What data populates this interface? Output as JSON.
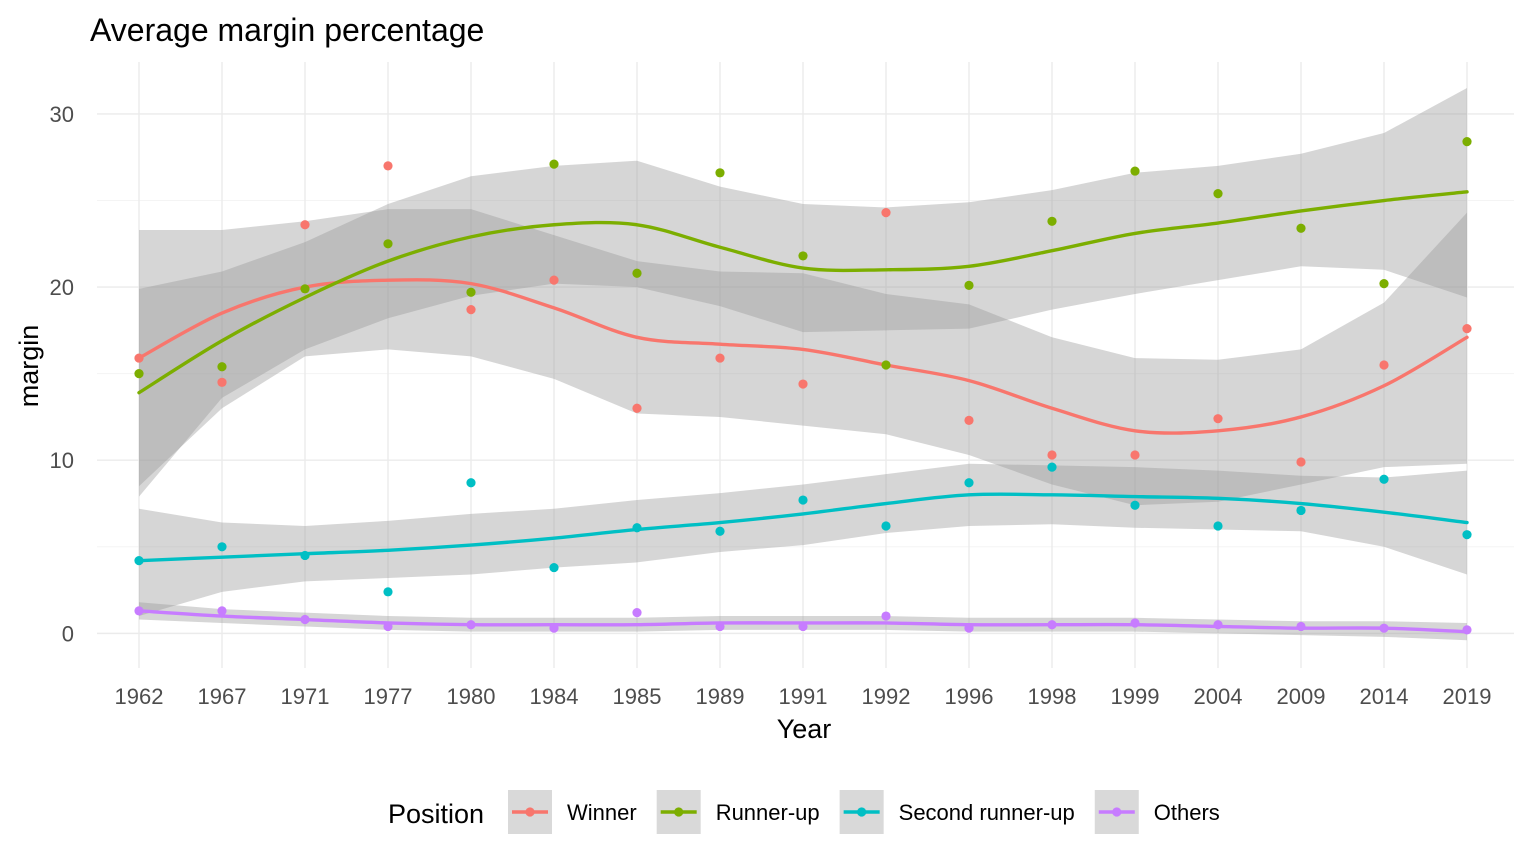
{
  "chart_data": {
    "type": "scatter",
    "title": "Average margin percentage",
    "xlabel": "Year",
    "ylabel": "margin",
    "categories": [
      "1962",
      "1967",
      "1971",
      "1977",
      "1980",
      "1984",
      "1985",
      "1989",
      "1991",
      "1992",
      "1996",
      "1998",
      "1999",
      "2004",
      "2009",
      "2014",
      "2019"
    ],
    "ylim": [
      -2,
      33
    ],
    "yticks": [
      0,
      10,
      20,
      30
    ],
    "grid": true,
    "legend_title": "Position",
    "legend_position": "bottom",
    "smoothing": "loess with confidence band",
    "series": [
      {
        "name": "Winner",
        "color": "#f8766d",
        "points": [
          15.9,
          14.5,
          23.6,
          27.0,
          18.7,
          20.4,
          13.0,
          15.9,
          14.4,
          24.3,
          12.3,
          10.3,
          10.3,
          12.4,
          9.9,
          15.5,
          17.6
        ],
        "trend": [
          15.9,
          18.5,
          20.0,
          20.4,
          20.2,
          18.8,
          17.1,
          16.7,
          16.4,
          15.5,
          14.6,
          13.0,
          11.7,
          11.7,
          12.5,
          14.3,
          17.1
        ],
        "band_low": [
          8.5,
          13.0,
          16.0,
          16.4,
          16.0,
          14.7,
          12.7,
          12.5,
          12.0,
          11.5,
          10.3,
          8.6,
          7.4,
          7.6,
          8.6,
          9.6,
          9.8
        ],
        "band_high": [
          23.3,
          23.3,
          23.8,
          24.5,
          24.5,
          23.0,
          21.5,
          20.9,
          20.8,
          19.6,
          19.0,
          17.1,
          15.9,
          15.8,
          16.4,
          19.1,
          24.3
        ]
      },
      {
        "name": "Runner-up",
        "color": "#7cae00",
        "points": [
          15.0,
          15.4,
          19.9,
          22.5,
          19.7,
          27.1,
          20.8,
          26.6,
          21.8,
          15.5,
          20.1,
          23.8,
          26.7,
          25.4,
          23.4,
          20.2,
          28.4
        ],
        "trend": [
          13.9,
          16.9,
          19.4,
          21.5,
          22.9,
          23.6,
          23.6,
          22.3,
          21.1,
          21.0,
          21.2,
          22.1,
          23.1,
          23.7,
          24.4,
          25.0,
          25.5
        ],
        "band_low": [
          7.9,
          13.6,
          16.4,
          18.2,
          19.5,
          20.2,
          20.0,
          18.9,
          17.4,
          17.5,
          17.6,
          18.7,
          19.6,
          20.4,
          21.2,
          21.0,
          19.4
        ],
        "band_high": [
          19.9,
          20.9,
          22.6,
          24.8,
          26.4,
          27.0,
          27.3,
          25.8,
          24.8,
          24.6,
          24.9,
          25.6,
          26.6,
          27.0,
          27.7,
          28.9,
          31.5
        ]
      },
      {
        "name": "Second runner-up",
        "color": "#00bfc4",
        "points": [
          4.2,
          5.0,
          4.5,
          2.4,
          8.7,
          3.8,
          6.1,
          5.9,
          7.7,
          6.2,
          8.7,
          9.6,
          7.4,
          6.2,
          7.1,
          8.9,
          5.7
        ],
        "trend": [
          4.2,
          4.4,
          4.6,
          4.8,
          5.1,
          5.5,
          6.0,
          6.4,
          6.9,
          7.5,
          8.0,
          8.0,
          7.9,
          7.8,
          7.5,
          7.0,
          6.4
        ],
        "band_low": [
          1.0,
          2.4,
          3.0,
          3.2,
          3.4,
          3.8,
          4.1,
          4.7,
          5.1,
          5.8,
          6.2,
          6.3,
          6.1,
          6.0,
          5.9,
          5.0,
          3.4
        ],
        "band_high": [
          7.2,
          6.4,
          6.2,
          6.5,
          6.9,
          7.2,
          7.7,
          8.1,
          8.6,
          9.2,
          9.8,
          9.7,
          9.6,
          9.4,
          9.1,
          9.0,
          9.4
        ]
      },
      {
        "name": "Others",
        "color": "#c77cff",
        "points": [
          1.3,
          1.3,
          0.8,
          0.4,
          0.5,
          0.3,
          1.2,
          0.4,
          0.4,
          1.0,
          0.3,
          0.5,
          0.6,
          0.5,
          0.4,
          0.3,
          0.2
        ],
        "trend": [
          1.3,
          1.0,
          0.8,
          0.6,
          0.5,
          0.5,
          0.5,
          0.6,
          0.6,
          0.6,
          0.5,
          0.5,
          0.5,
          0.4,
          0.3,
          0.3,
          0.1
        ],
        "band_low": [
          0.8,
          0.6,
          0.4,
          0.2,
          0.1,
          0.1,
          0.1,
          0.2,
          0.2,
          0.2,
          0.1,
          0.1,
          0.1,
          0.0,
          -0.1,
          -0.2,
          -0.4
        ],
        "band_high": [
          1.8,
          1.4,
          1.2,
          1.0,
          0.9,
          0.9,
          0.9,
          1.0,
          1.0,
          1.0,
          0.9,
          0.9,
          0.9,
          0.8,
          0.7,
          0.7,
          0.6
        ]
      }
    ]
  }
}
